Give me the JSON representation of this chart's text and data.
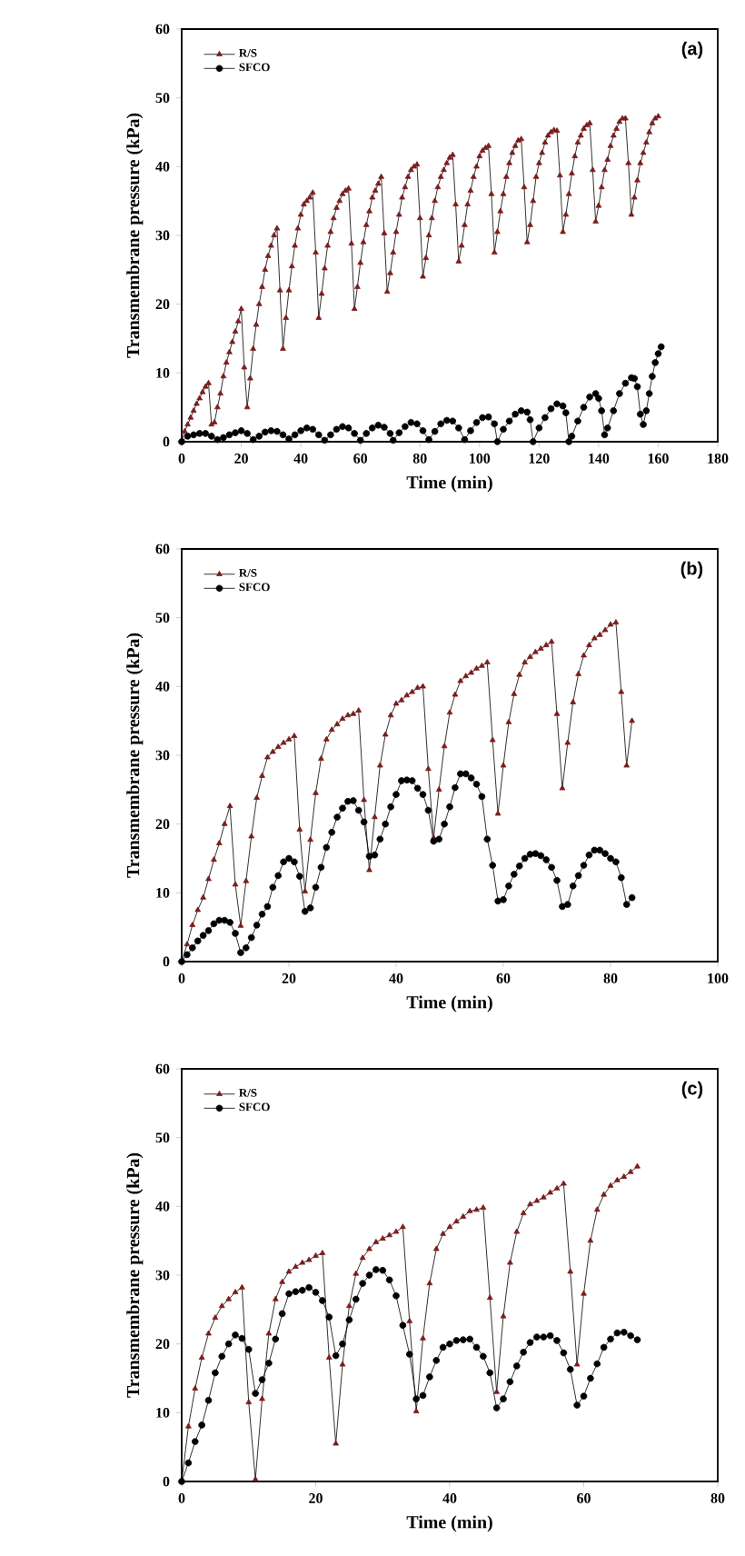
{
  "chart_data": [
    {
      "type": "line",
      "title": "(a)",
      "xlabel": "Time (min)",
      "ylabel": "Transmembrane pressure (kPa)",
      "xlim": [
        0,
        180
      ],
      "xticks": [
        0,
        20,
        40,
        60,
        80,
        100,
        120,
        140,
        160,
        180
      ],
      "ylim": [
        0,
        60
      ],
      "yticks": [
        0,
        10,
        20,
        30,
        40,
        50,
        60
      ],
      "legend": "top left",
      "series": [
        {
          "name": "R/S",
          "color": "#7b1c1c",
          "marker": "triangle",
          "x": [
            0,
            1,
            2,
            3,
            4,
            5,
            6,
            7,
            8,
            9,
            10,
            11,
            12,
            13,
            14,
            15,
            16,
            17,
            18,
            19,
            20,
            21,
            22,
            23,
            24,
            25,
            26,
            27,
            28,
            29,
            30,
            31,
            32,
            33,
            34,
            35,
            36,
            37,
            38,
            39,
            40,
            41,
            42,
            43,
            44,
            45,
            46,
            47,
            48,
            49,
            50,
            51,
            52,
            53,
            54,
            55,
            56,
            57,
            58,
            59,
            60,
            61,
            62,
            63,
            64,
            65,
            66,
            67,
            68,
            69,
            70,
            71,
            72,
            73,
            74,
            75,
            76,
            77,
            78,
            79,
            80,
            81,
            82,
            83,
            84,
            85,
            86,
            87,
            88,
            89,
            90,
            91,
            92,
            93,
            94,
            95,
            96,
            97,
            98,
            99,
            100,
            101,
            102,
            103,
            104,
            105,
            106,
            107,
            108,
            109,
            110,
            111,
            112,
            113,
            114,
            115,
            116,
            117,
            118,
            119,
            120,
            121,
            122,
            123,
            124,
            125,
            126,
            127,
            128,
            129,
            130,
            131,
            132,
            133,
            134,
            135,
            136,
            137,
            138,
            139,
            140,
            141,
            142,
            143,
            144,
            145,
            146,
            147,
            148,
            149,
            150,
            151,
            152,
            153,
            154,
            155,
            156,
            157,
            158,
            159,
            160
          ],
          "values": [
            0,
            1.5,
            2.5,
            3.5,
            4.5,
            5.5,
            6.3,
            7.2,
            8,
            8.5,
            2.5,
            2.8,
            5,
            7,
            9.5,
            11.5,
            13,
            14.5,
            16,
            17.5,
            19.3,
            10.8,
            5,
            9.2,
            13.5,
            17,
            20,
            22.5,
            25,
            27,
            28.5,
            30,
            31,
            22,
            13.5,
            18,
            22,
            25.5,
            28.5,
            31,
            33,
            34.5,
            35,
            35.5,
            36.2,
            27.5,
            18,
            21.5,
            25.2,
            28.5,
            30.5,
            32.5,
            34,
            35,
            36,
            36.5,
            36.8,
            28.8,
            19.3,
            22.5,
            26,
            29,
            31.5,
            33.5,
            35.5,
            36.5,
            37.5,
            38.5,
            30.3,
            21.8,
            24.5,
            27.5,
            30.5,
            33,
            35.5,
            37,
            38.5,
            39.5,
            40,
            40.3,
            32.5,
            24,
            26.7,
            30,
            32.5,
            35,
            37,
            38.5,
            39.5,
            40.5,
            41.3,
            41.7,
            34.5,
            26.2,
            28.5,
            31.5,
            34.5,
            36.5,
            38.5,
            40,
            41.5,
            42.3,
            42.7,
            43,
            36,
            27.5,
            30.5,
            33.5,
            36,
            38.5,
            40.5,
            42,
            43,
            43.8,
            44,
            37,
            29,
            31.5,
            35,
            38.5,
            40.5,
            42,
            43.5,
            44.5,
            45,
            45.3,
            45.2,
            38.7,
            30.5,
            33,
            36,
            39,
            41.5,
            43.5,
            44.5,
            45.5,
            46,
            46.3,
            39.5,
            32,
            34.3,
            37,
            39.5,
            41,
            43,
            44.5,
            45.5,
            46.5,
            47,
            47,
            40.5,
            33,
            35.5,
            38,
            40.5,
            42,
            43.5,
            45,
            46.3,
            47,
            47.3
          ]
        },
        {
          "name": "SFCO",
          "color": "#000000",
          "marker": "circle",
          "x": [
            0,
            2,
            4,
            6,
            8,
            10,
            12,
            14,
            16,
            18,
            20,
            22,
            24,
            26,
            28,
            30,
            32,
            34,
            36,
            38,
            40,
            42,
            44,
            46,
            48,
            50,
            52,
            54,
            56,
            58,
            60,
            62,
            64,
            66,
            68,
            70,
            71,
            73,
            75,
            77,
            79,
            81,
            83,
            85,
            87,
            89,
            91,
            93,
            95,
            97,
            99,
            101,
            103,
            105,
            106,
            108,
            110,
            112,
            114,
            116,
            117,
            118,
            120,
            122,
            124,
            126,
            128,
            129,
            130,
            131,
            133,
            135,
            137,
            139,
            140,
            141,
            142,
            143,
            145,
            147,
            149,
            151,
            152,
            153,
            154,
            155,
            156,
            157,
            158,
            159,
            160,
            161
          ],
          "values": [
            0,
            0.8,
            1,
            1.2,
            1.2,
            0.8,
            0.3,
            0.6,
            1,
            1.3,
            1.6,
            1.2,
            0.3,
            0.8,
            1.4,
            1.6,
            1.5,
            1,
            0.4,
            1,
            1.6,
            2,
            1.8,
            1,
            0.2,
            1,
            1.8,
            2.2,
            2,
            1.2,
            0.2,
            1.2,
            2,
            2.4,
            2.1,
            1.2,
            0.2,
            1.3,
            2.2,
            2.8,
            2.6,
            1.6,
            0.3,
            1.5,
            2.6,
            3.1,
            3,
            2,
            0.3,
            1.6,
            2.8,
            3.5,
            3.6,
            2.6,
            0,
            1.8,
            3,
            4,
            4.5,
            4.3,
            3.2,
            0,
            2,
            3.5,
            4.8,
            5.5,
            5.2,
            4.2,
            0,
            0.8,
            3,
            5,
            6.5,
            7,
            6.3,
            4.5,
            1,
            2,
            4.5,
            7,
            8.5,
            9.3,
            9.2,
            8,
            4,
            2.5,
            4.5,
            7,
            9.5,
            11.5,
            12.8,
            13.8
          ]
        }
      ]
    },
    {
      "type": "line",
      "title": "(b)",
      "xlabel": "Time (min)",
      "ylabel": "Transmembrane pressure (kPa)",
      "xlim": [
        0,
        100
      ],
      "xticks": [
        0,
        20,
        40,
        60,
        80,
        100
      ],
      "ylim": [
        0,
        60
      ],
      "yticks": [
        0,
        10,
        20,
        30,
        40,
        50,
        60
      ],
      "legend": "top left",
      "series": [
        {
          "name": "R/S",
          "color": "#7b1c1c",
          "marker": "triangle",
          "x": [
            0,
            1,
            2,
            3,
            4,
            5,
            6,
            7,
            8,
            9,
            10,
            11,
            12,
            13,
            14,
            15,
            16,
            17,
            18,
            19,
            20,
            21,
            22,
            23,
            24,
            25,
            26,
            27,
            28,
            29,
            30,
            31,
            32,
            33,
            34,
            35,
            36,
            37,
            38,
            39,
            40,
            41,
            42,
            43,
            44,
            45,
            46,
            47,
            48,
            49,
            50,
            51,
            52,
            53,
            54,
            55,
            56,
            57,
            58,
            59,
            60,
            61,
            62,
            63,
            64,
            65,
            66,
            67,
            68,
            69,
            70,
            71,
            72,
            73,
            74,
            75,
            76,
            77,
            78,
            79,
            80,
            81,
            82,
            83,
            84
          ],
          "values": [
            0,
            2.5,
            5.3,
            7.5,
            9.3,
            12,
            14.8,
            17.2,
            20,
            22.6,
            11.2,
            5.2,
            11.7,
            18.2,
            23.8,
            27,
            29.7,
            30.5,
            31.2,
            31.8,
            32.3,
            32.8,
            19.2,
            10.2,
            17.7,
            24.5,
            29.5,
            32.3,
            33.7,
            34.5,
            35.3,
            35.8,
            36,
            36.5,
            23.5,
            13.3,
            21,
            28.5,
            33,
            35.8,
            37.5,
            38,
            38.7,
            39.2,
            39.8,
            40,
            28,
            18,
            25,
            31.3,
            36.2,
            38.8,
            40.8,
            41.5,
            42,
            42.6,
            43,
            43.5,
            32.2,
            21.5,
            28.5,
            34.8,
            38.9,
            41.7,
            43.5,
            44.3,
            45,
            45.5,
            46,
            46.5,
            36,
            25.2,
            31.8,
            37.7,
            41.8,
            44.5,
            46,
            47,
            47.5,
            48.2,
            49,
            49.3,
            39.2,
            28.5,
            35
          ]
        },
        {
          "name": "SFCO",
          "color": "#000000",
          "marker": "circle",
          "x": [
            0,
            1,
            2,
            3,
            4,
            5,
            6,
            7,
            8,
            9,
            10,
            11,
            12,
            13,
            14,
            15,
            16,
            17,
            18,
            19,
            20,
            21,
            22,
            23,
            24,
            25,
            26,
            27,
            28,
            29,
            30,
            31,
            32,
            33,
            34,
            35,
            36,
            37,
            38,
            39,
            40,
            41,
            42,
            43,
            44,
            45,
            46,
            47,
            48,
            49,
            50,
            51,
            52,
            53,
            54,
            55,
            56,
            57,
            58,
            59,
            60,
            61,
            62,
            63,
            64,
            65,
            66,
            67,
            68,
            69,
            70,
            71,
            72,
            73,
            74,
            75,
            76,
            77,
            78,
            79,
            80,
            81,
            82,
            83,
            84
          ],
          "values": [
            0,
            1,
            2,
            3,
            3.8,
            4.5,
            5.5,
            6,
            6,
            5.7,
            4.1,
            1.3,
            2,
            3.5,
            5.3,
            6.9,
            8,
            10.8,
            12.5,
            14.5,
            15,
            14.5,
            12.4,
            7.3,
            7.8,
            10.8,
            13.7,
            16.6,
            18.8,
            21,
            22.3,
            23.3,
            23.4,
            22,
            20.3,
            15.3,
            15.5,
            17.8,
            20,
            22.5,
            24.3,
            26.3,
            26.4,
            26.3,
            25.2,
            24.3,
            22,
            17.5,
            17.8,
            20,
            22.5,
            25.3,
            27.3,
            27.3,
            26.7,
            25.8,
            24,
            17.8,
            14,
            8.8,
            9,
            11,
            12.7,
            13.9,
            15,
            15.6,
            15.7,
            15.4,
            14.8,
            13.7,
            11.8,
            8,
            8.3,
            11,
            12.5,
            14,
            15.5,
            16.2,
            16.2,
            15.7,
            15,
            14.5,
            12.2,
            8.3,
            9.3
          ]
        }
      ]
    },
    {
      "type": "line",
      "title": "(c)",
      "xlabel": "Time (min)",
      "ylabel": "Transmembrane pressure (kPa)",
      "xlim": [
        0,
        80
      ],
      "xticks": [
        0,
        20,
        40,
        60,
        80
      ],
      "ylim": [
        0,
        60
      ],
      "yticks": [
        0,
        10,
        20,
        30,
        40,
        50,
        60
      ],
      "legend": "top left",
      "series": [
        {
          "name": "R/S",
          "color": "#7b1c1c",
          "marker": "triangle",
          "x": [
            0,
            1,
            2,
            3,
            4,
            5,
            6,
            7,
            8,
            9,
            10,
            11,
            12,
            13,
            14,
            15,
            16,
            17,
            18,
            19,
            20,
            21,
            22,
            23,
            24,
            25,
            26,
            27,
            28,
            29,
            30,
            31,
            32,
            33,
            34,
            35,
            36,
            37,
            38,
            39,
            40,
            41,
            42,
            43,
            44,
            45,
            46,
            47,
            48,
            49,
            50,
            51,
            52,
            53,
            54,
            55,
            56,
            57,
            58,
            59,
            60,
            61,
            62,
            63,
            64,
            65,
            66,
            67,
            68
          ],
          "values": [
            0,
            8,
            13.5,
            18,
            21.5,
            23.8,
            25.5,
            26.5,
            27.5,
            28.2,
            11.5,
            0.3,
            12,
            21.5,
            26.5,
            29,
            30.5,
            31.2,
            31.8,
            32.2,
            32.8,
            33.2,
            18,
            5.5,
            17,
            25.5,
            30.2,
            32.5,
            33.8,
            34.8,
            35.3,
            35.8,
            36.3,
            37,
            23.3,
            10.2,
            20.8,
            28.8,
            33.8,
            36,
            37,
            37.8,
            38.5,
            39.3,
            39.5,
            39.8,
            26.7,
            13,
            24,
            31.8,
            36.3,
            39,
            40.3,
            40.8,
            41.3,
            42,
            42.6,
            43.3,
            30.5,
            17,
            27.3,
            35,
            39.5,
            41.7,
            43,
            43.8,
            44.3,
            45,
            45.8
          ]
        },
        {
          "name": "SFCO",
          "color": "#000000",
          "marker": "circle",
          "x": [
            0,
            1,
            2,
            3,
            4,
            5,
            6,
            7,
            8,
            9,
            10,
            11,
            12,
            13,
            14,
            15,
            16,
            17,
            18,
            19,
            20,
            21,
            22,
            23,
            24,
            25,
            26,
            27,
            28,
            29,
            30,
            31,
            32,
            33,
            34,
            35,
            36,
            37,
            38,
            39,
            40,
            41,
            42,
            43,
            44,
            45,
            46,
            47,
            48,
            49,
            50,
            51,
            52,
            53,
            54,
            55,
            56,
            57,
            58,
            59,
            60,
            61,
            62,
            63,
            64,
            65,
            66,
            67,
            68
          ],
          "values": [
            0,
            2.7,
            5.8,
            8.2,
            11.8,
            15.8,
            18.2,
            20,
            21.3,
            20.8,
            19.2,
            12.8,
            14.8,
            17.2,
            20.7,
            24.4,
            27.3,
            27.6,
            27.8,
            28.2,
            27.5,
            26.3,
            23.9,
            18.3,
            20,
            23.5,
            26.5,
            28.8,
            30,
            30.8,
            30.7,
            29.3,
            27,
            22.7,
            18.5,
            12,
            12.5,
            15.2,
            17.6,
            19.5,
            20,
            20.5,
            20.6,
            20.7,
            19.5,
            18.2,
            15.8,
            10.7,
            12,
            14.5,
            16.8,
            18.8,
            20.2,
            21,
            21,
            21.2,
            20.5,
            18.7,
            16.3,
            11.1,
            12.4,
            15,
            17.1,
            19.5,
            20.7,
            21.6,
            21.7,
            21.2,
            20.6
          ]
        }
      ]
    }
  ]
}
